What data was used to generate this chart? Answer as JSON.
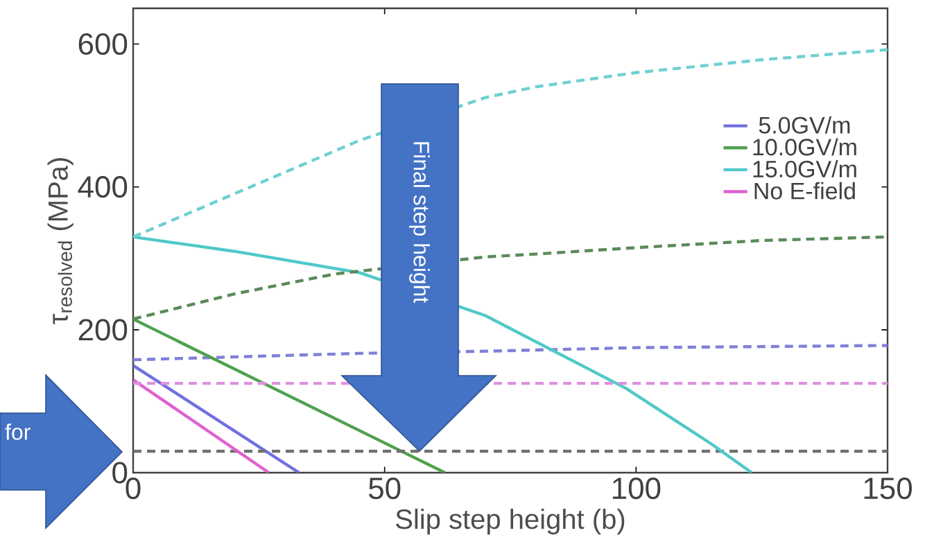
{
  "chart_data": {
    "type": "line",
    "xlabel": "Slip step height (b)",
    "ylabel": "τ$_{resolved}$ (MPa)",
    "xlim": [
      0,
      150
    ],
    "ylim": [
      0,
      650
    ],
    "xticks": [
      0,
      50,
      100,
      150
    ],
    "yticks": [
      0,
      200,
      400,
      600
    ],
    "legend": "right",
    "grid": false,
    "annotations": [
      "Final step height",
      "for"
    ],
    "series": [
      {
        "name": "5.0GV/m",
        "color": "#7070e0",
        "line_style": "solid",
        "x": [
          0,
          33
        ],
        "values": [
          150,
          0
        ]
      },
      {
        "color": "#8080d8",
        "line_style": "dashed",
        "x": [
          0,
          45,
          70,
          100,
          150
        ],
        "values": [
          158,
          167,
          170,
          175,
          178
        ]
      },
      {
        "name": "10.0GV/m",
        "color": "#50a050",
        "line_style": "solid",
        "x": [
          0,
          62
        ],
        "values": [
          215,
          0
        ]
      },
      {
        "color": "#707070",
        "line_style": "dashed",
        "x": [
          0,
          150
        ],
        "values": [
          30,
          30
        ]
      },
      {
        "name": "15.0GV/m",
        "color": "#50c8c8",
        "line_style": "solid",
        "x": [
          0,
          20,
          45,
          70,
          98,
          115,
          123
        ],
        "values": [
          330,
          310,
          280,
          220,
          118,
          40,
          0
        ]
      },
      {
        "color": "#70d0d0",
        "line_style": "dashed",
        "x": [
          0,
          20,
          45,
          70,
          80,
          100,
          125,
          150
        ],
        "values": [
          330,
          390,
          465,
          525,
          540,
          560,
          578,
          592
        ]
      },
      {
        "name": "No E-field",
        "color": "#e060d0",
        "line_style": "solid",
        "x": [
          0,
          27
        ],
        "values": [
          130,
          0
        ]
      },
      {
        "color": "#e090e0",
        "line_style": "dashed",
        "x": [
          0,
          150
        ],
        "values": [
          125,
          125
        ]
      },
      {
        "color": "#5a8a5a",
        "line_style": "dashed",
        "x": [
          0,
          20,
          40,
          70,
          80,
          100,
          125,
          150
        ],
        "values": [
          215,
          250,
          278,
          302,
          306,
          315,
          325,
          330
        ]
      }
    ]
  }
}
